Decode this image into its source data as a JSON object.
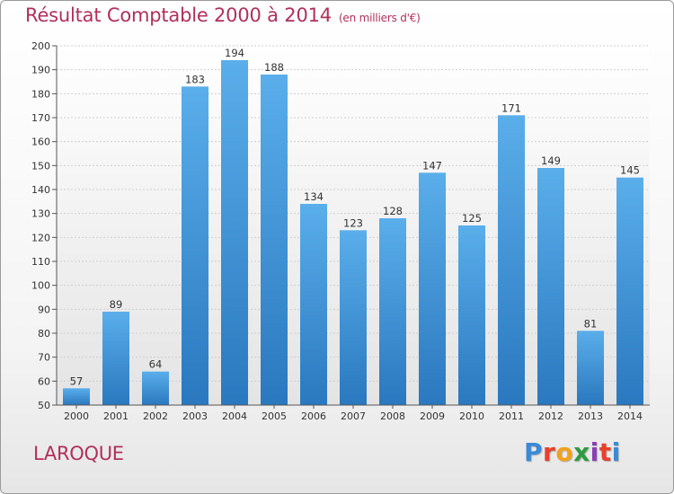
{
  "header": {
    "title": "Résultat Comptable 2000 à 2014",
    "subtitle": "(en milliers d'€)"
  },
  "footer": {
    "commune": "LAROQUE",
    "logo_text": "Proxiti",
    "logo_colors": [
      "#3a8ad6",
      "#e8402a",
      "#f2a11c",
      "#2d9b3e",
      "#8a3fb5",
      "#e8402a",
      "#3a8ad6"
    ]
  },
  "chart_data": {
    "type": "bar",
    "title": "Résultat Comptable 2000 à 2014",
    "subtitle": "(en milliers d'€)",
    "categories": [
      "2000",
      "2001",
      "2002",
      "2003",
      "2004",
      "2005",
      "2006",
      "2007",
      "2008",
      "2009",
      "2010",
      "2011",
      "2012",
      "2013",
      "2014"
    ],
    "values": [
      57,
      89,
      64,
      183,
      194,
      188,
      134,
      123,
      128,
      147,
      125,
      171,
      149,
      81,
      145
    ],
    "ylim": [
      50,
      200
    ],
    "yticks": [
      50,
      60,
      70,
      80,
      90,
      100,
      110,
      120,
      130,
      140,
      150,
      160,
      170,
      180,
      190,
      200
    ],
    "grid": true,
    "bar_color_top": "#5aaeea",
    "bar_color_bottom": "#2a78bf"
  }
}
